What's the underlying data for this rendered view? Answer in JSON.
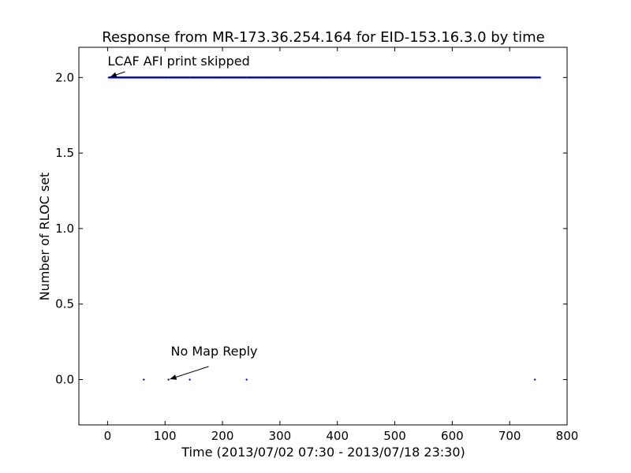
{
  "chart_data": {
    "type": "scatter",
    "title": "Response from MR-173.36.254.164 for EID-153.16.3.0 by time",
    "xlabel": "Time (2013/07/02 07:30 - 2013/07/18 23:30)",
    "ylabel": "Number of RLOC set",
    "xlim": [
      -50,
      800
    ],
    "ylim": [
      -0.3,
      2.2
    ],
    "xticks": [
      0,
      100,
      200,
      300,
      400,
      500,
      600,
      700,
      800
    ],
    "yticks": [
      0.0,
      0.5,
      1.0,
      1.5,
      2.0
    ],
    "xtick_labels": [
      "0",
      "100",
      "200",
      "300",
      "400",
      "500",
      "600",
      "700",
      "800"
    ],
    "ytick_labels": [
      "0.0",
      "0.5",
      "1.0",
      "1.5",
      "2.0"
    ],
    "grid": false,
    "series": [
      {
        "color": "#0000cc",
        "marker": "dot",
        "x_range": [
          2,
          753
        ],
        "y_value": 2,
        "x_excluded": [
          63,
          106,
          143,
          242,
          744
        ]
      },
      {
        "color": "#0000cc",
        "marker": "dot",
        "x": [
          63,
          106,
          143,
          242,
          744
        ],
        "y": [
          0,
          0,
          0,
          0,
          0
        ]
      }
    ],
    "annotations": [
      {
        "text": "LCAF AFI print skipped",
        "point": [
          2,
          2.0
        ],
        "text_at": [
          0,
          2.08
        ]
      },
      {
        "text": "No Map Reply",
        "point": [
          106,
          0.0
        ],
        "text_at": [
          110,
          0.16
        ]
      }
    ]
  }
}
